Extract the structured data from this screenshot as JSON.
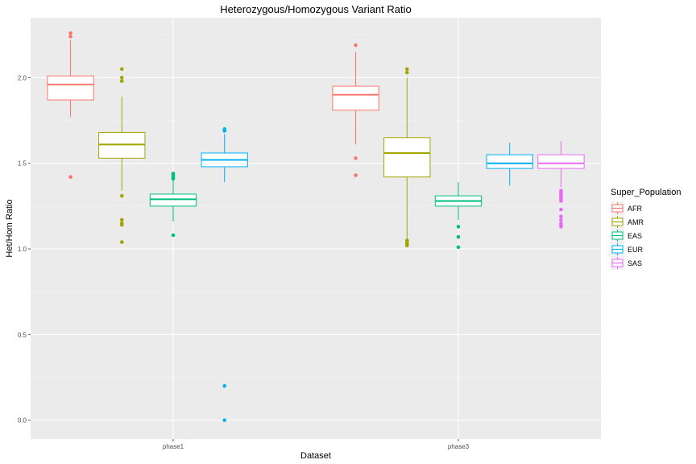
{
  "chart_data": {
    "type": "boxplot",
    "title": "Heterozygous/Homozygous Variant Ratio",
    "xlabel": "Dataset",
    "ylabel": "Het/Hom Ratio",
    "ylim": [
      -0.11,
      2.35
    ],
    "yticks": [
      "0.0",
      "0.5",
      "1.0",
      "1.5",
      "2.0"
    ],
    "categories": [
      "phase1",
      "phase3"
    ],
    "grid": true,
    "legend": {
      "title": "Super_Population",
      "position": "right"
    },
    "series": [
      {
        "name": "AFR",
        "color": "#F8766D",
        "boxes": [
          {
            "category": "phase1",
            "whisker_low": 1.77,
            "q1": 1.87,
            "median": 1.96,
            "q3": 2.01,
            "whisker_high": 2.22,
            "outliers": [
              2.26,
              2.24,
              1.42
            ]
          },
          {
            "category": "phase3",
            "whisker_low": 1.61,
            "q1": 1.81,
            "median": 1.9,
            "q3": 1.95,
            "whisker_high": 2.15,
            "outliers": [
              2.19,
              1.53,
              1.43
            ]
          }
        ]
      },
      {
        "name": "AMR",
        "color": "#A3A500",
        "boxes": [
          {
            "category": "phase1",
            "whisker_low": 1.34,
            "q1": 1.53,
            "median": 1.61,
            "q3": 1.68,
            "whisker_high": 1.89,
            "outliers": [
              2.05,
              2.0,
              1.98,
              1.31,
              1.17,
              1.15,
              1.14,
              1.04
            ]
          },
          {
            "category": "phase3",
            "whisker_low": 1.06,
            "q1": 1.42,
            "median": 1.56,
            "q3": 1.65,
            "whisker_high": 2.0,
            "outliers": [
              2.05,
              2.03,
              1.05,
              1.04,
              1.03,
              1.02
            ]
          }
        ]
      },
      {
        "name": "EAS",
        "color": "#00BF7D",
        "boxes": [
          {
            "category": "phase1",
            "whisker_low": 1.16,
            "q1": 1.25,
            "median": 1.29,
            "q3": 1.32,
            "whisker_high": 1.4,
            "outliers": [
              1.44,
              1.43,
              1.42,
              1.41,
              1.08
            ]
          },
          {
            "category": "phase3",
            "whisker_low": 1.17,
            "q1": 1.25,
            "median": 1.28,
            "q3": 1.31,
            "whisker_high": 1.39,
            "outliers": [
              1.13,
              1.07,
              1.01
            ]
          }
        ]
      },
      {
        "name": "EUR",
        "color": "#00B0F6",
        "boxes": [
          {
            "category": "phase1",
            "whisker_low": 1.39,
            "q1": 1.48,
            "median": 1.52,
            "q3": 1.56,
            "whisker_high": 1.67,
            "outliers": [
              1.7,
              1.69,
              0.2,
              0.0
            ]
          },
          {
            "category": "phase3",
            "whisker_low": 1.37,
            "q1": 1.47,
            "median": 1.5,
            "q3": 1.55,
            "whisker_high": 1.62,
            "outliers": []
          }
        ]
      },
      {
        "name": "SAS",
        "color": "#E76BF3",
        "boxes": [
          {
            "category": "phase3",
            "whisker_low": 1.36,
            "q1": 1.47,
            "median": 1.5,
            "q3": 1.55,
            "whisker_high": 1.63,
            "outliers": [
              1.34,
              1.33,
              1.32,
              1.31,
              1.3,
              1.29,
              1.28,
              1.23,
              1.19,
              1.17,
              1.15,
              1.14,
              1.13
            ]
          }
        ]
      }
    ]
  }
}
